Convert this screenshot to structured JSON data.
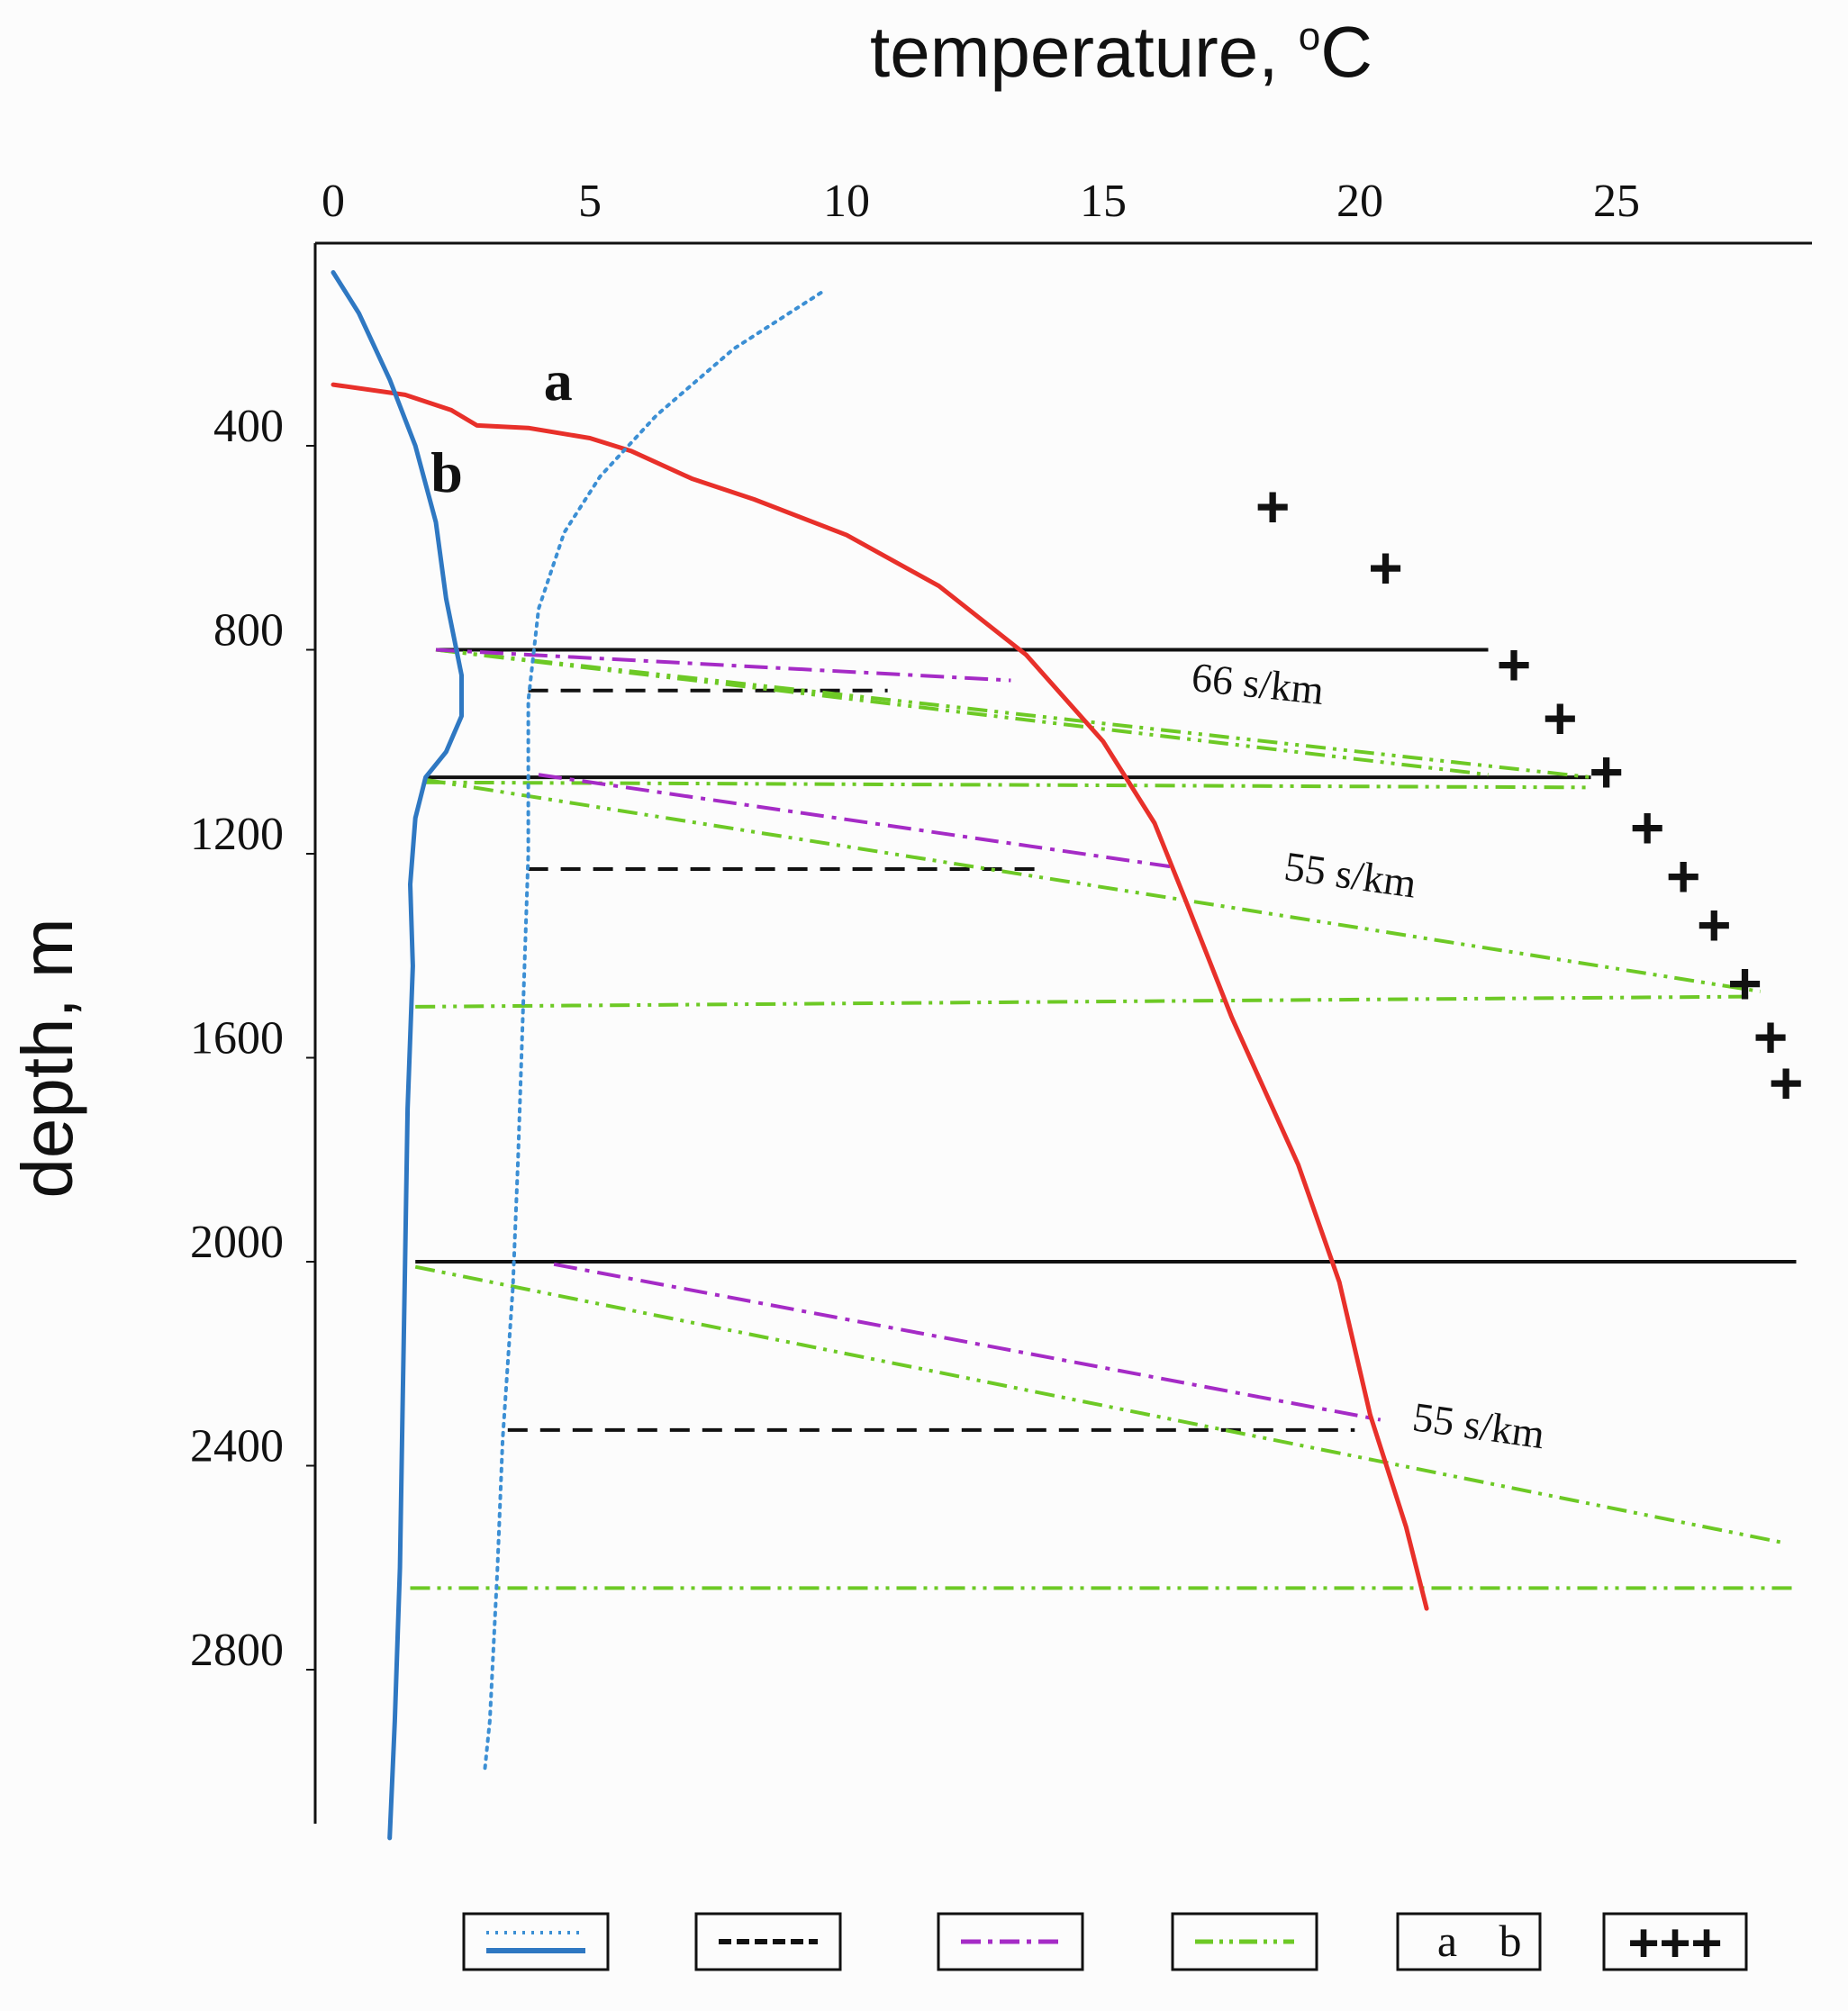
{
  "chart_data": {
    "type": "line",
    "title": "temperature, °C",
    "title_parts": {
      "main": "temperature, ",
      "degree": "o",
      "unit": "C"
    },
    "xlabel": "temperature, °C",
    "ylabel": "depth, m",
    "x_axis_position": "top",
    "xlim": [
      0,
      28.5
    ],
    "ylim": [
      0,
      3150
    ],
    "x_ticks": [
      0,
      5,
      10,
      15,
      20,
      25
    ],
    "x_tick_labels": [
      "0",
      "5",
      "10",
      "15",
      "20",
      "25"
    ],
    "y_ticks": [
      400,
      800,
      1200,
      1600,
      2000,
      2400,
      2800
    ],
    "y_tick_labels": [
      "400",
      "800",
      "1200",
      "1600",
      "2000",
      "2400",
      "2800"
    ],
    "grid": false,
    "series": [
      {
        "name": "a",
        "label": "a",
        "color": "#e8302a",
        "style": "solid",
        "points": [
          [
            0,
            280
          ],
          [
            1.4,
            300
          ],
          [
            2.3,
            330
          ],
          [
            2.8,
            360
          ],
          [
            3.8,
            365
          ],
          [
            5.0,
            385
          ],
          [
            5.8,
            410
          ],
          [
            7.0,
            465
          ],
          [
            8.2,
            505
          ],
          [
            10.0,
            575
          ],
          [
            11.8,
            675
          ],
          [
            13.5,
            810
          ],
          [
            15.0,
            980
          ],
          [
            16.0,
            1140
          ],
          [
            16.6,
            1290
          ],
          [
            17.5,
            1520
          ],
          [
            18.8,
            1810
          ],
          [
            19.6,
            2040
          ],
          [
            20.2,
            2300
          ],
          [
            20.9,
            2520
          ],
          [
            21.3,
            2680
          ]
        ]
      },
      {
        "name": "b",
        "label": "b",
        "color": "#2f78c2",
        "style": "solid",
        "points": [
          [
            0,
            60
          ],
          [
            0.5,
            140
          ],
          [
            1.1,
            270
          ],
          [
            1.6,
            400
          ],
          [
            2.0,
            550
          ],
          [
            2.2,
            700
          ],
          [
            2.5,
            850
          ],
          [
            2.5,
            930
          ],
          [
            2.2,
            1000
          ],
          [
            1.8,
            1050
          ],
          [
            1.6,
            1130
          ],
          [
            1.5,
            1260
          ],
          [
            1.55,
            1420
          ],
          [
            1.45,
            1700
          ],
          [
            1.4,
            2000
          ],
          [
            1.35,
            2300
          ],
          [
            1.3,
            2600
          ],
          [
            1.2,
            2900
          ],
          [
            1.1,
            3130
          ]
        ]
      },
      {
        "name": "dotted-blue",
        "color": "#3c8fd4",
        "style": "dotted",
        "points": [
          [
            9.5,
            100
          ],
          [
            7.8,
            210
          ],
          [
            6.3,
            340
          ],
          [
            5.2,
            460
          ],
          [
            4.5,
            570
          ],
          [
            4.0,
            720
          ],
          [
            3.8,
            900
          ],
          [
            3.8,
            1200
          ],
          [
            3.7,
            1500
          ],
          [
            3.6,
            1800
          ],
          [
            3.5,
            2050
          ],
          [
            3.3,
            2350
          ],
          [
            3.2,
            2600
          ],
          [
            3.05,
            2900
          ],
          [
            2.95,
            3000
          ]
        ]
      },
      {
        "name": "sound-speed-markers",
        "marker": "+",
        "color": "#111111",
        "points": [
          [
            18.3,
            520
          ],
          [
            20.5,
            640
          ],
          [
            23.0,
            830
          ],
          [
            23.9,
            935
          ],
          [
            24.8,
            1040
          ],
          [
            25.6,
            1150
          ],
          [
            26.3,
            1245
          ],
          [
            26.9,
            1340
          ],
          [
            27.5,
            1455
          ],
          [
            28.0,
            1560
          ],
          [
            28.3,
            1650
          ]
        ]
      }
    ],
    "horizontals": [
      {
        "y": 800,
        "x": [
          2.0,
          22.5
        ],
        "style": "solid",
        "color": "#111111"
      },
      {
        "y": 1050,
        "x": [
          1.8,
          24.5
        ],
        "style": "solid",
        "color": "#111111"
      },
      {
        "y": 2000,
        "x": [
          1.6,
          28.5
        ],
        "style": "solid",
        "color": "#111111"
      },
      {
        "y": 880,
        "x": [
          3.8,
          10.8
        ],
        "style": "dashed",
        "color": "#111111"
      },
      {
        "y": 1230,
        "x": [
          3.8,
          13.8
        ],
        "style": "dashed",
        "color": "#111111"
      },
      {
        "y": 2330,
        "x": [
          3.4,
          19.9
        ],
        "style": "dashed",
        "color": "#111111"
      }
    ],
    "rays_magenta": [
      {
        "from": [
          2.0,
          800
        ],
        "to": [
          13.2,
          860
        ]
      },
      {
        "from": [
          4.0,
          1045
        ],
        "to": [
          16.3,
          1225
        ]
      },
      {
        "from": [
          4.3,
          2005
        ],
        "to": [
          20.4,
          2310
        ]
      }
    ],
    "rays_green": [
      {
        "from": [
          2.0,
          800
        ],
        "to": [
          22.5,
          1045
        ]
      },
      {
        "from": [
          2.0,
          800
        ],
        "to": [
          24.5,
          1050
        ]
      },
      {
        "from": [
          1.8,
          1060
        ],
        "to": [
          24.5,
          1070
        ]
      },
      {
        "from": [
          1.8,
          1055
        ],
        "to": [
          27.8,
          1470
        ]
      },
      {
        "from": [
          1.6,
          1500
        ],
        "to": [
          27.7,
          1480
        ]
      },
      {
        "from": [
          1.6,
          2010
        ],
        "to": [
          28.2,
          2550
        ]
      },
      {
        "from": [
          1.5,
          2640
        ],
        "to": [
          28.5,
          2640
        ]
      }
    ],
    "annotations": [
      {
        "text": "66 s/km",
        "x": 16.7,
        "y": 880,
        "rotate": 6
      },
      {
        "text": "55 s/km",
        "x": 18.5,
        "y": 1250,
        "rotate": 8
      },
      {
        "text": "55 s/km",
        "x": 21.0,
        "y": 2330,
        "rotate": 8
      },
      {
        "text": "a",
        "x": 4.1,
        "y": 310
      },
      {
        "text": "b",
        "x": 1.9,
        "y": 490
      }
    ],
    "legend": {
      "placement": "bottom",
      "entries": [
        {
          "key": "temperature-profiles",
          "sample": "blue dotted + blue solid"
        },
        {
          "key": "black-dashed",
          "sample": "black dashed"
        },
        {
          "key": "magenta-dash-dot",
          "sample": "magenta dash-dot"
        },
        {
          "key": "green-dash-dot-dot",
          "sample": "green dash-dot-dot"
        },
        {
          "key": "ab-labels",
          "text_a": "a",
          "text_b": "b"
        },
        {
          "key": "plus-markers",
          "text": "+++"
        }
      ]
    }
  }
}
